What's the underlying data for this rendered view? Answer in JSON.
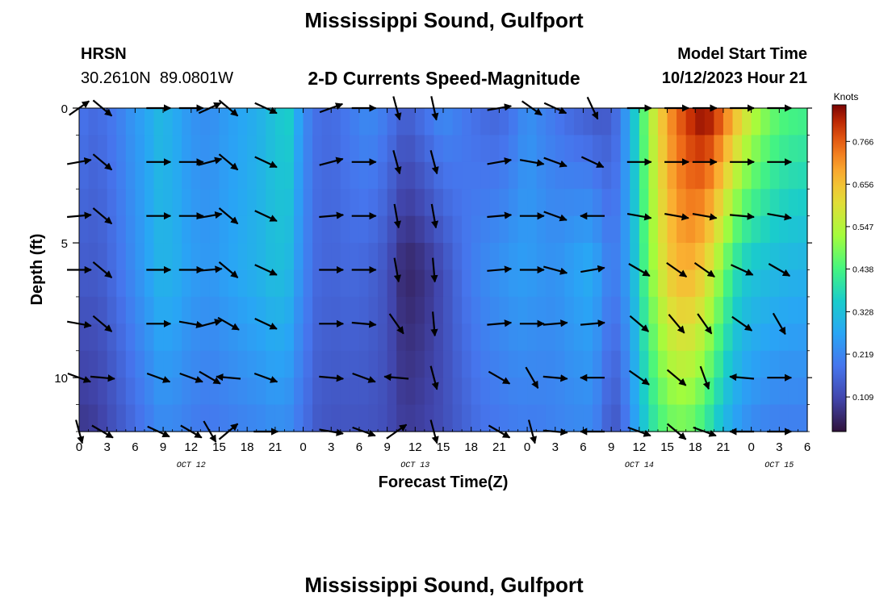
{
  "header": {
    "title": "Mississippi Sound, Gulfport",
    "station_code": "HRSN",
    "station_coords": "30.2610N  89.0801W",
    "subtitle": "2-D Currents Speed-Magnitude",
    "model_start_label": "Model Start Time",
    "model_start_value": "10/12/2023 Hour 21"
  },
  "footer": {
    "repeated_title": "Mississippi Sound, Gulfport"
  },
  "chart_data": {
    "type": "heatmap",
    "title": "2-D Currents Speed-Magnitude",
    "xlabel": "Forecast Time(Z)",
    "ylabel": "Depth (ft)",
    "xlim_hours": [
      0,
      78
    ],
    "ylim": [
      0,
      12
    ],
    "y_inverted": true,
    "x_tick_labels": [
      "0",
      "3",
      "6",
      "9",
      "12",
      "15",
      "18",
      "21",
      "0",
      "3",
      "6",
      "9",
      "12",
      "15",
      "18",
      "21",
      "0",
      "3",
      "6",
      "9",
      "12",
      "15",
      "18",
      "21",
      "0",
      "3",
      "6"
    ],
    "y_tick_labels": [
      "0",
      "5",
      "10"
    ],
    "y_ticks": [
      0,
      5,
      10
    ],
    "day_labels": [
      {
        "text": "OCT 12",
        "hour": 12
      },
      {
        "text": "OCT 13",
        "hour": 36
      },
      {
        "text": "OCT 14",
        "hour": 60
      },
      {
        "text": "OCT 15",
        "hour": 75
      }
    ],
    "colorbar": {
      "label": "Knots",
      "range": [
        0.02,
        0.86
      ],
      "ticks": [
        "0.109",
        "0.219",
        "0.328",
        "0.438",
        "0.547",
        "0.656",
        "0.766"
      ],
      "tick_values": [
        0.109,
        0.219,
        0.328,
        0.438,
        0.547,
        0.656,
        0.766
      ]
    },
    "speed_by_hour": {
      "hours": [
        0,
        1,
        2.5,
        4,
        5.5,
        7,
        8.5,
        10,
        12,
        14,
        16,
        18,
        20,
        21,
        22.5,
        24,
        25.5,
        27,
        29,
        31,
        33,
        34,
        35,
        37,
        39,
        41,
        43,
        45,
        47,
        48,
        49,
        51,
        53,
        55,
        56,
        57,
        58,
        59,
        60,
        61,
        62,
        63,
        64,
        65,
        66,
        67,
        68,
        69,
        70,
        71,
        72,
        73,
        75,
        77,
        78
      ],
      "surface": [
        0.2,
        0.17,
        0.18,
        0.2,
        0.24,
        0.27,
        0.31,
        0.29,
        0.24,
        0.23,
        0.26,
        0.28,
        0.31,
        0.34,
        0.36,
        0.23,
        0.18,
        0.17,
        0.2,
        0.23,
        0.2,
        0.17,
        0.15,
        0.19,
        0.23,
        0.2,
        0.17,
        0.16,
        0.2,
        0.24,
        0.22,
        0.19,
        0.16,
        0.14,
        0.13,
        0.15,
        0.19,
        0.3,
        0.4,
        0.52,
        0.62,
        0.7,
        0.76,
        0.8,
        0.84,
        0.86,
        0.83,
        0.77,
        0.7,
        0.63,
        0.57,
        0.52,
        0.46,
        0.44,
        0.44
      ],
      "mid": [
        0.15,
        0.14,
        0.15,
        0.18,
        0.22,
        0.26,
        0.3,
        0.3,
        0.26,
        0.25,
        0.27,
        0.29,
        0.31,
        0.33,
        0.31,
        0.22,
        0.17,
        0.16,
        0.17,
        0.16,
        0.13,
        0.08,
        0.05,
        0.07,
        0.12,
        0.18,
        0.22,
        0.24,
        0.26,
        0.26,
        0.25,
        0.24,
        0.27,
        0.29,
        0.24,
        0.2,
        0.22,
        0.28,
        0.38,
        0.48,
        0.56,
        0.63,
        0.67,
        0.68,
        0.67,
        0.62,
        0.56,
        0.48,
        0.41,
        0.36,
        0.34,
        0.33,
        0.31,
        0.3,
        0.3
      ],
      "bottom": [
        0.08,
        0.08,
        0.1,
        0.13,
        0.16,
        0.19,
        0.22,
        0.22,
        0.2,
        0.19,
        0.2,
        0.21,
        0.22,
        0.23,
        0.22,
        0.18,
        0.14,
        0.13,
        0.13,
        0.13,
        0.12,
        0.1,
        0.09,
        0.1,
        0.12,
        0.15,
        0.18,
        0.19,
        0.2,
        0.2,
        0.2,
        0.21,
        0.22,
        0.22,
        0.18,
        0.13,
        0.15,
        0.22,
        0.3,
        0.37,
        0.42,
        0.46,
        0.47,
        0.47,
        0.45,
        0.41,
        0.36,
        0.31,
        0.27,
        0.24,
        0.22,
        0.21,
        0.2,
        0.2,
        0.2
      ]
    },
    "arrow_rows_depth_ft": [
      0,
      2,
      4,
      6,
      8,
      10,
      12
    ],
    "arrows": [
      [
        [
          0,
          0,
          35
        ],
        [
          2.5,
          0,
          -40
        ],
        [
          8.5,
          0,
          0
        ],
        [
          12,
          0,
          0
        ],
        [
          14,
          0,
          25
        ],
        [
          16,
          0,
          -40
        ],
        [
          20,
          0,
          -25
        ],
        [
          27,
          0,
          20
        ],
        [
          30.5,
          0,
          0
        ],
        [
          34,
          0,
          -75
        ],
        [
          38,
          0,
          -78
        ],
        [
          45,
          0,
          10
        ],
        [
          48.5,
          0,
          -35
        ],
        [
          51,
          0,
          -25
        ],
        [
          55,
          0,
          -65
        ],
        [
          60,
          0,
          0
        ],
        [
          64,
          0,
          0
        ],
        [
          67,
          0,
          0
        ],
        [
          71,
          0,
          0
        ],
        [
          75,
          0,
          0
        ]
      ],
      [
        [
          0,
          2,
          10
        ],
        [
          2.5,
          2,
          -40
        ],
        [
          8.5,
          2,
          0
        ],
        [
          12,
          2,
          0
        ],
        [
          14,
          2,
          15
        ],
        [
          16,
          2,
          -40
        ],
        [
          20,
          2,
          -25
        ],
        [
          27,
          2,
          15
        ],
        [
          30.5,
          2,
          0
        ],
        [
          34,
          2,
          -75
        ],
        [
          38,
          2,
          -75
        ],
        [
          45,
          2,
          10
        ],
        [
          48.5,
          2,
          -10
        ],
        [
          51,
          2,
          -20
        ],
        [
          55,
          2,
          -25
        ],
        [
          60,
          2,
          0
        ],
        [
          64,
          2,
          0
        ],
        [
          67,
          2,
          0
        ],
        [
          71,
          2,
          0
        ],
        [
          75,
          2,
          0
        ]
      ],
      [
        [
          0,
          4,
          5
        ],
        [
          2.5,
          4,
          -40
        ],
        [
          8.5,
          4,
          0
        ],
        [
          12,
          4,
          0
        ],
        [
          14,
          4,
          10
        ],
        [
          16,
          4,
          -40
        ],
        [
          20,
          4,
          -25
        ],
        [
          27,
          4,
          5
        ],
        [
          30.5,
          4,
          0
        ],
        [
          34,
          4,
          -80
        ],
        [
          38,
          4,
          -80
        ],
        [
          45,
          4,
          5
        ],
        [
          48.5,
          4,
          0
        ],
        [
          51,
          4,
          -20
        ],
        [
          55,
          4,
          180
        ],
        [
          60,
          4,
          -10
        ],
        [
          64,
          4,
          -10
        ],
        [
          67,
          4,
          -10
        ],
        [
          71,
          4,
          -5
        ],
        [
          75,
          4,
          -10
        ]
      ],
      [
        [
          0,
          6,
          0
        ],
        [
          2.5,
          6,
          -40
        ],
        [
          8.5,
          6,
          0
        ],
        [
          12,
          6,
          0
        ],
        [
          14,
          6,
          5
        ],
        [
          16,
          6,
          -40
        ],
        [
          20,
          6,
          -25
        ],
        [
          27,
          6,
          0
        ],
        [
          30.5,
          6,
          0
        ],
        [
          34,
          6,
          -80
        ],
        [
          38,
          6,
          -85
        ],
        [
          45,
          6,
          5
        ],
        [
          48.5,
          6,
          0
        ],
        [
          51,
          6,
          -15
        ],
        [
          55,
          6,
          10
        ],
        [
          60,
          6,
          -30
        ],
        [
          64,
          6,
          -35
        ],
        [
          67,
          6,
          -35
        ],
        [
          71,
          6,
          -25
        ],
        [
          75,
          6,
          -30
        ]
      ],
      [
        [
          0,
          8,
          -10
        ],
        [
          2.5,
          8,
          -40
        ],
        [
          8.5,
          8,
          0
        ],
        [
          12,
          8,
          -10
        ],
        [
          14,
          8,
          15
        ],
        [
          16,
          8,
          -30
        ],
        [
          20,
          8,
          -25
        ],
        [
          27,
          8,
          0
        ],
        [
          30.5,
          8,
          -5
        ],
        [
          34,
          8,
          -55
        ],
        [
          38,
          8,
          -85
        ],
        [
          45,
          8,
          5
        ],
        [
          48.5,
          8,
          0
        ],
        [
          51,
          8,
          5
        ],
        [
          55,
          8,
          5
        ],
        [
          60,
          8,
          -40
        ],
        [
          64,
          8,
          -50
        ],
        [
          67,
          8,
          -55
        ],
        [
          71,
          8,
          -35
        ],
        [
          75,
          8,
          -60
        ]
      ],
      [
        [
          0,
          10,
          -20
        ],
        [
          2.5,
          10,
          -5
        ],
        [
          8.5,
          10,
          -20
        ],
        [
          12,
          10,
          -20
        ],
        [
          14,
          10,
          -30
        ],
        [
          16,
          10,
          175
        ],
        [
          20,
          10,
          -20
        ],
        [
          27,
          10,
          -5
        ],
        [
          30.5,
          10,
          -20
        ],
        [
          34,
          10,
          175
        ],
        [
          38,
          10,
          -75
        ],
        [
          45,
          10,
          -30
        ],
        [
          48.5,
          10,
          -60
        ],
        [
          51,
          10,
          -5
        ],
        [
          55,
          10,
          180
        ],
        [
          60,
          10,
          -35
        ],
        [
          64,
          10,
          -40
        ],
        [
          67,
          10,
          -70
        ],
        [
          71,
          10,
          175
        ],
        [
          75,
          10,
          0
        ]
      ],
      [
        [
          0,
          12,
          -75
        ],
        [
          2.5,
          12,
          -30
        ],
        [
          8.5,
          12,
          -25
        ],
        [
          12,
          12,
          -30
        ],
        [
          14,
          12,
          -60
        ],
        [
          16,
          12,
          40
        ],
        [
          20,
          12,
          0
        ],
        [
          27,
          12,
          -10
        ],
        [
          30.5,
          12,
          -20
        ],
        [
          34,
          12,
          35
        ],
        [
          38,
          12,
          -75
        ],
        [
          45,
          12,
          -30
        ],
        [
          48.5,
          12,
          -75
        ],
        [
          51,
          12,
          -5
        ],
        [
          55,
          12,
          180
        ],
        [
          60,
          12,
          -20
        ],
        [
          64,
          12,
          -40
        ],
        [
          67,
          12,
          -20
        ],
        [
          71,
          12,
          180
        ],
        [
          75,
          12,
          0
        ]
      ]
    ]
  }
}
